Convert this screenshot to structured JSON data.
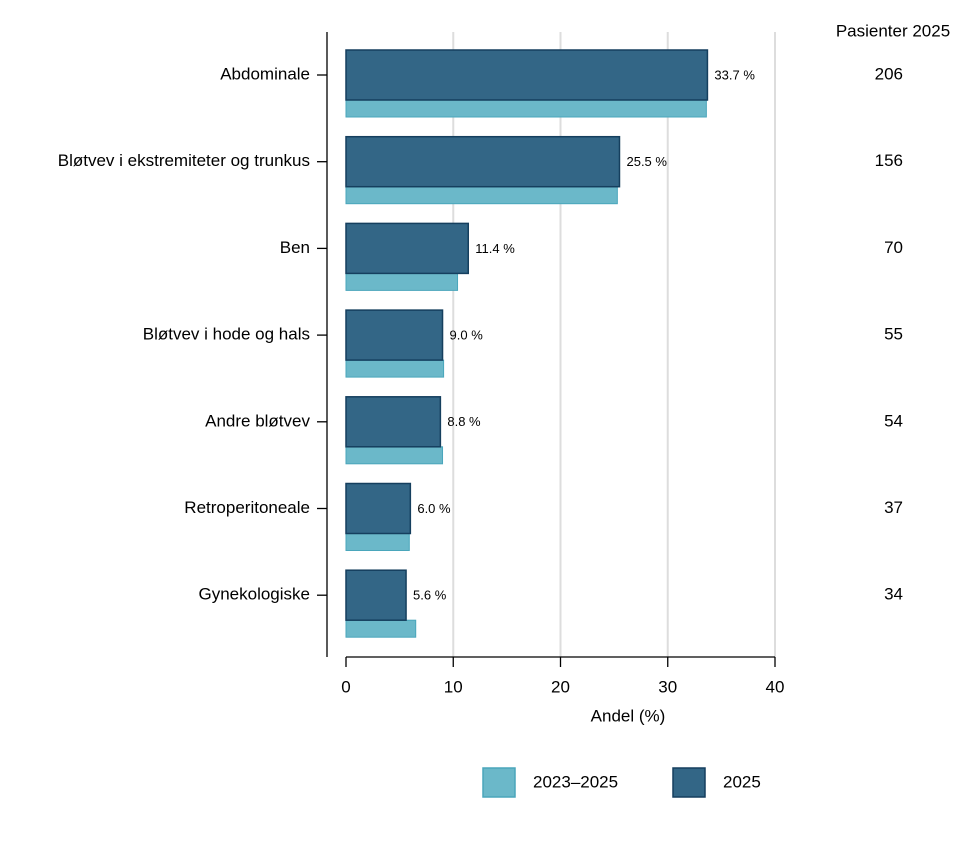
{
  "chart_data": {
    "type": "hbar",
    "xlabel": "Andel (%)",
    "categories": [
      "Abdominale",
      "Bløtvev i ekstremiteter og trunkus",
      "Ben",
      "Bløtvev i hode og hals",
      "Andre bløtvev",
      "Retroperitoneale",
      "Gynekologiske"
    ],
    "series": [
      {
        "name": "2023–2025",
        "color": "#6bb8c9",
        "values": [
          33.6,
          25.3,
          10.4,
          9.1,
          9.0,
          5.9,
          6.5
        ]
      },
      {
        "name": "2025",
        "color": "#336686",
        "values": [
          33.7,
          25.5,
          11.4,
          9.0,
          8.8,
          6.0,
          5.6
        ],
        "value_labels": [
          "33.7 %",
          "25.5 %",
          "11.4 %",
          "9.0 %",
          "8.8 %",
          "6.0 %",
          "5.6 %"
        ]
      }
    ],
    "xlim": [
      0,
      40
    ],
    "xticks": [
      0,
      10,
      20,
      30,
      40
    ],
    "grid": true,
    "legend": "bottom",
    "patients": {
      "title": "Pasienter 2025",
      "values": [
        206,
        156,
        70,
        55,
        54,
        37,
        34
      ]
    }
  }
}
